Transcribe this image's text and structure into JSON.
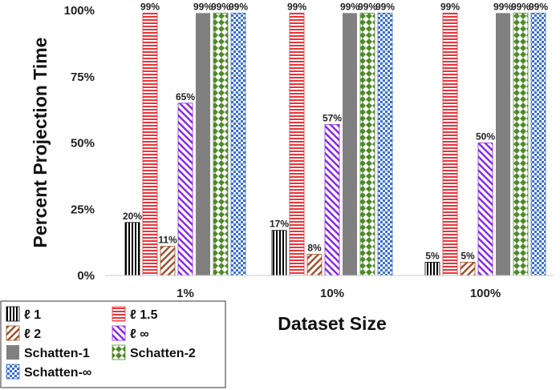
{
  "chart_data": {
    "type": "bar",
    "title": "",
    "xlabel": "Dataset Size",
    "ylabel": "Percent Projection Time",
    "ylim": [
      0,
      100
    ],
    "yticks": [
      "0%",
      "25%",
      "50%",
      "75%",
      "100%"
    ],
    "ytick_values": [
      0,
      25,
      50,
      75,
      100
    ],
    "categories": [
      "1%",
      "10%",
      "100%"
    ],
    "series": [
      {
        "name": "ℓ 1",
        "values": [
          20,
          17,
          5
        ],
        "labels": [
          "20%",
          "17%",
          "5%"
        ],
        "pattern": "vlines",
        "color": "#000000"
      },
      {
        "name": "ℓ 1.5",
        "values": [
          99,
          99,
          99
        ],
        "labels": [
          "99%",
          "99%",
          "99%"
        ],
        "pattern": "hlines",
        "color": "#e8343a"
      },
      {
        "name": "ℓ 2",
        "values": [
          11,
          8,
          5
        ],
        "labels": [
          "11%",
          "8%",
          "5%"
        ],
        "pattern": "diag",
        "color": "#a0522d"
      },
      {
        "name": "ℓ ∞",
        "values": [
          65,
          57,
          50
        ],
        "labels": [
          "65%",
          "57%",
          "50%"
        ],
        "pattern": "diagup",
        "color": "#8a2be2"
      },
      {
        "name": "Schatten-1",
        "values": [
          99,
          99,
          99
        ],
        "labels": [
          "99%",
          "99%",
          "99%"
        ],
        "pattern": "solid",
        "color": "#808080"
      },
      {
        "name": "Schatten-2",
        "values": [
          99,
          99,
          99
        ],
        "labels": [
          "99%",
          "99%",
          "99%"
        ],
        "pattern": "diamond",
        "color": "#4f8a2a"
      },
      {
        "name": "Schatten-∞",
        "values": [
          99,
          99,
          99
        ],
        "labels": [
          "99%",
          "99%",
          "99%"
        ],
        "pattern": "checker",
        "color": "#3a6fd0"
      }
    ],
    "legend": "bottom-left",
    "grid": false
  }
}
